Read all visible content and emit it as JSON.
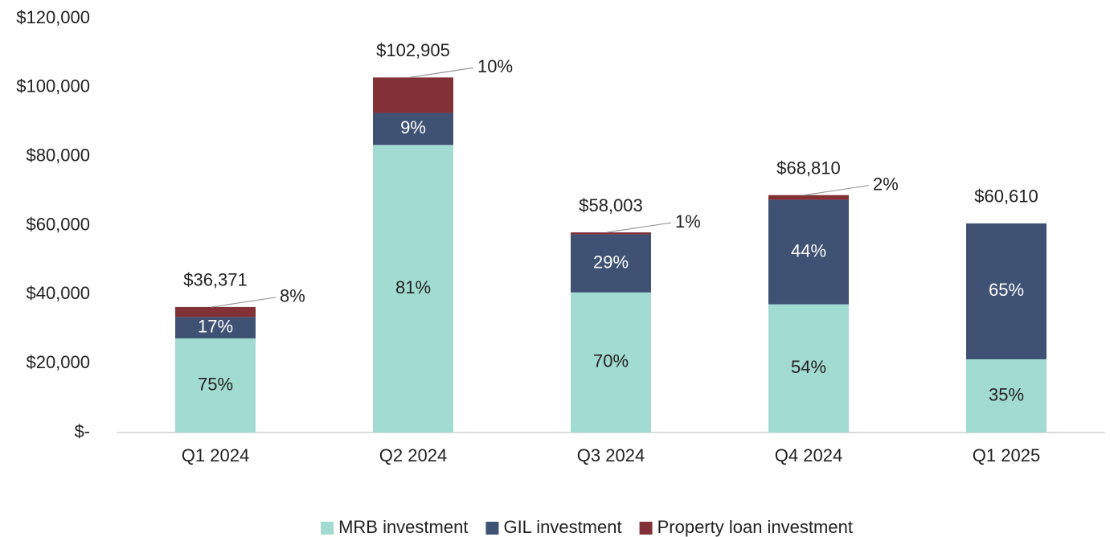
{
  "chart_data": {
    "type": "stacked_bar",
    "categories": [
      "Q1 2024",
      "Q2 2024",
      "Q3 2024",
      "Q4 2024",
      "Q1 2025"
    ],
    "series": [
      {
        "name": "MRB investment",
        "color": "#a1dbd1",
        "values": [
          27278,
          83353,
          40602,
          37157,
          21214
        ],
        "value_labels": [
          "75%",
          "81%",
          "70%",
          "54%",
          "35%"
        ]
      },
      {
        "name": "GIL investment",
        "color": "#3f5274",
        "values": [
          6183,
          9261,
          16821,
          30276,
          39396
        ],
        "value_labels": [
          "17%",
          "9%",
          "29%",
          "44%",
          "65%"
        ]
      },
      {
        "name": "Property loan investment",
        "color": "#823236",
        "values": [
          2910,
          10291,
          580,
          1377,
          0
        ],
        "value_labels": [
          "8%",
          "10%",
          "1%",
          "2%",
          null
        ]
      }
    ],
    "totals": [
      36371,
      102905,
      58003,
      68810,
      60610
    ],
    "total_labels": [
      "$36,371",
      "$102,905",
      "$58,003",
      "$68,810",
      "$60,610"
    ],
    "ylim": [
      0,
      120000
    ],
    "yticks": [
      {
        "value": 0,
        "label": "$-"
      },
      {
        "value": 20000,
        "label": "$20,000"
      },
      {
        "value": 40000,
        "label": "$40,000"
      },
      {
        "value": 60000,
        "label": "$60,000"
      },
      {
        "value": 80000,
        "label": "$80,000"
      },
      {
        "value": 100000,
        "label": "$100,000"
      },
      {
        "value": 120000,
        "label": "$120,000"
      }
    ],
    "grid": false,
    "legend": "bottom"
  }
}
